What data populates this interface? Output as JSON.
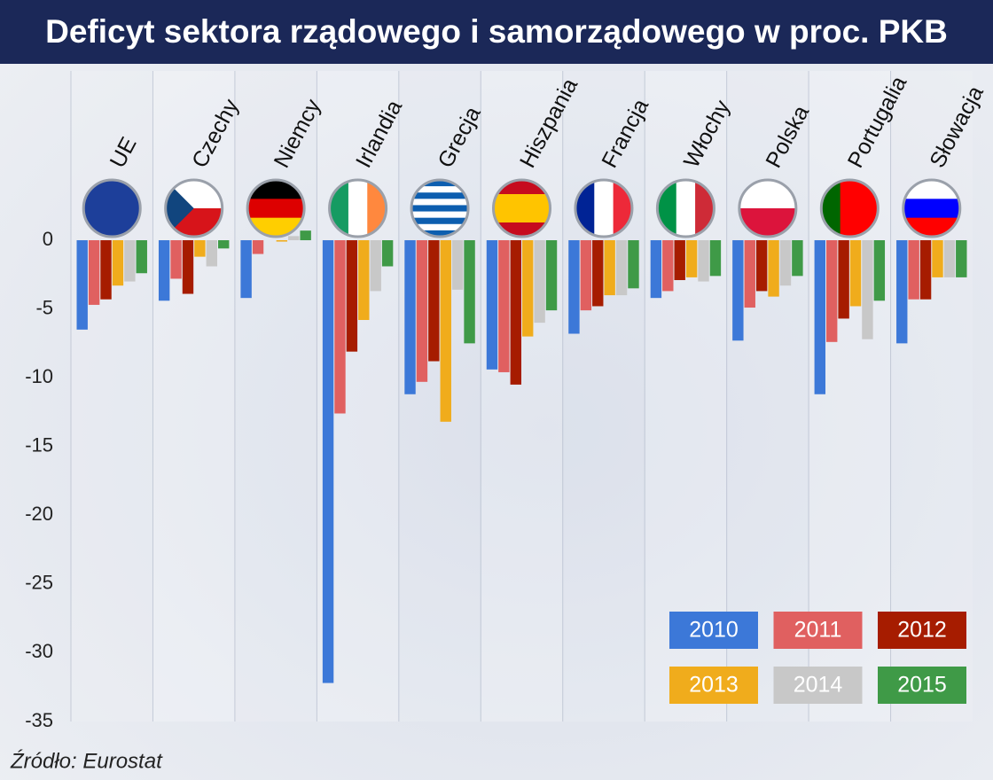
{
  "chart_data": {
    "type": "bar",
    "title": "Deficyt sektora rządowego i samorządowego w proc. PKB",
    "source": "Źródło: Eurostat",
    "categories": [
      "UE",
      "Czechy",
      "Niemcy",
      "Irlandia",
      "Grecja",
      "Hiszpania",
      "Francja",
      "Włochy",
      "Polska",
      "Portugalia",
      "Słowacja"
    ],
    "series": [
      {
        "name": "2010",
        "color": "#3c78d8",
        "values": [
          -6.5,
          -4.4,
          -4.2,
          -32.2,
          -11.2,
          -9.4,
          -6.8,
          -4.2,
          -7.3,
          -11.2,
          -7.5
        ]
      },
      {
        "name": "2011",
        "color": "#e06060",
        "values": [
          -4.7,
          -2.8,
          -1.0,
          -12.6,
          -10.3,
          -9.6,
          -5.1,
          -3.7,
          -4.9,
          -7.4,
          -4.3
        ]
      },
      {
        "name": "2012",
        "color": "#a61c00",
        "values": [
          -4.3,
          -3.9,
          0.0,
          -8.1,
          -8.8,
          -10.5,
          -4.8,
          -2.9,
          -3.7,
          -5.7,
          -4.3
        ]
      },
      {
        "name": "2013",
        "color": "#f0ac1c",
        "values": [
          -3.3,
          -1.2,
          -0.1,
          -5.8,
          -13.2,
          -7.0,
          -4.0,
          -2.7,
          -4.1,
          -4.8,
          -2.7
        ]
      },
      {
        "name": "2014",
        "color": "#c8c8c8",
        "values": [
          -3.0,
          -1.9,
          0.3,
          -3.7,
          -3.6,
          -6.0,
          -4.0,
          -3.0,
          -3.3,
          -7.2,
          -2.7
        ]
      },
      {
        "name": "2015",
        "color": "#3f9a47",
        "values": [
          -2.4,
          -0.6,
          0.7,
          -1.9,
          -7.5,
          -5.1,
          -3.5,
          -2.6,
          -2.6,
          -4.4,
          -2.7
        ]
      }
    ],
    "ylim": [
      -35,
      1
    ],
    "yticks": [
      0,
      -5,
      -10,
      -15,
      -20,
      -25,
      -30,
      -35
    ],
    "grid": false
  }
}
